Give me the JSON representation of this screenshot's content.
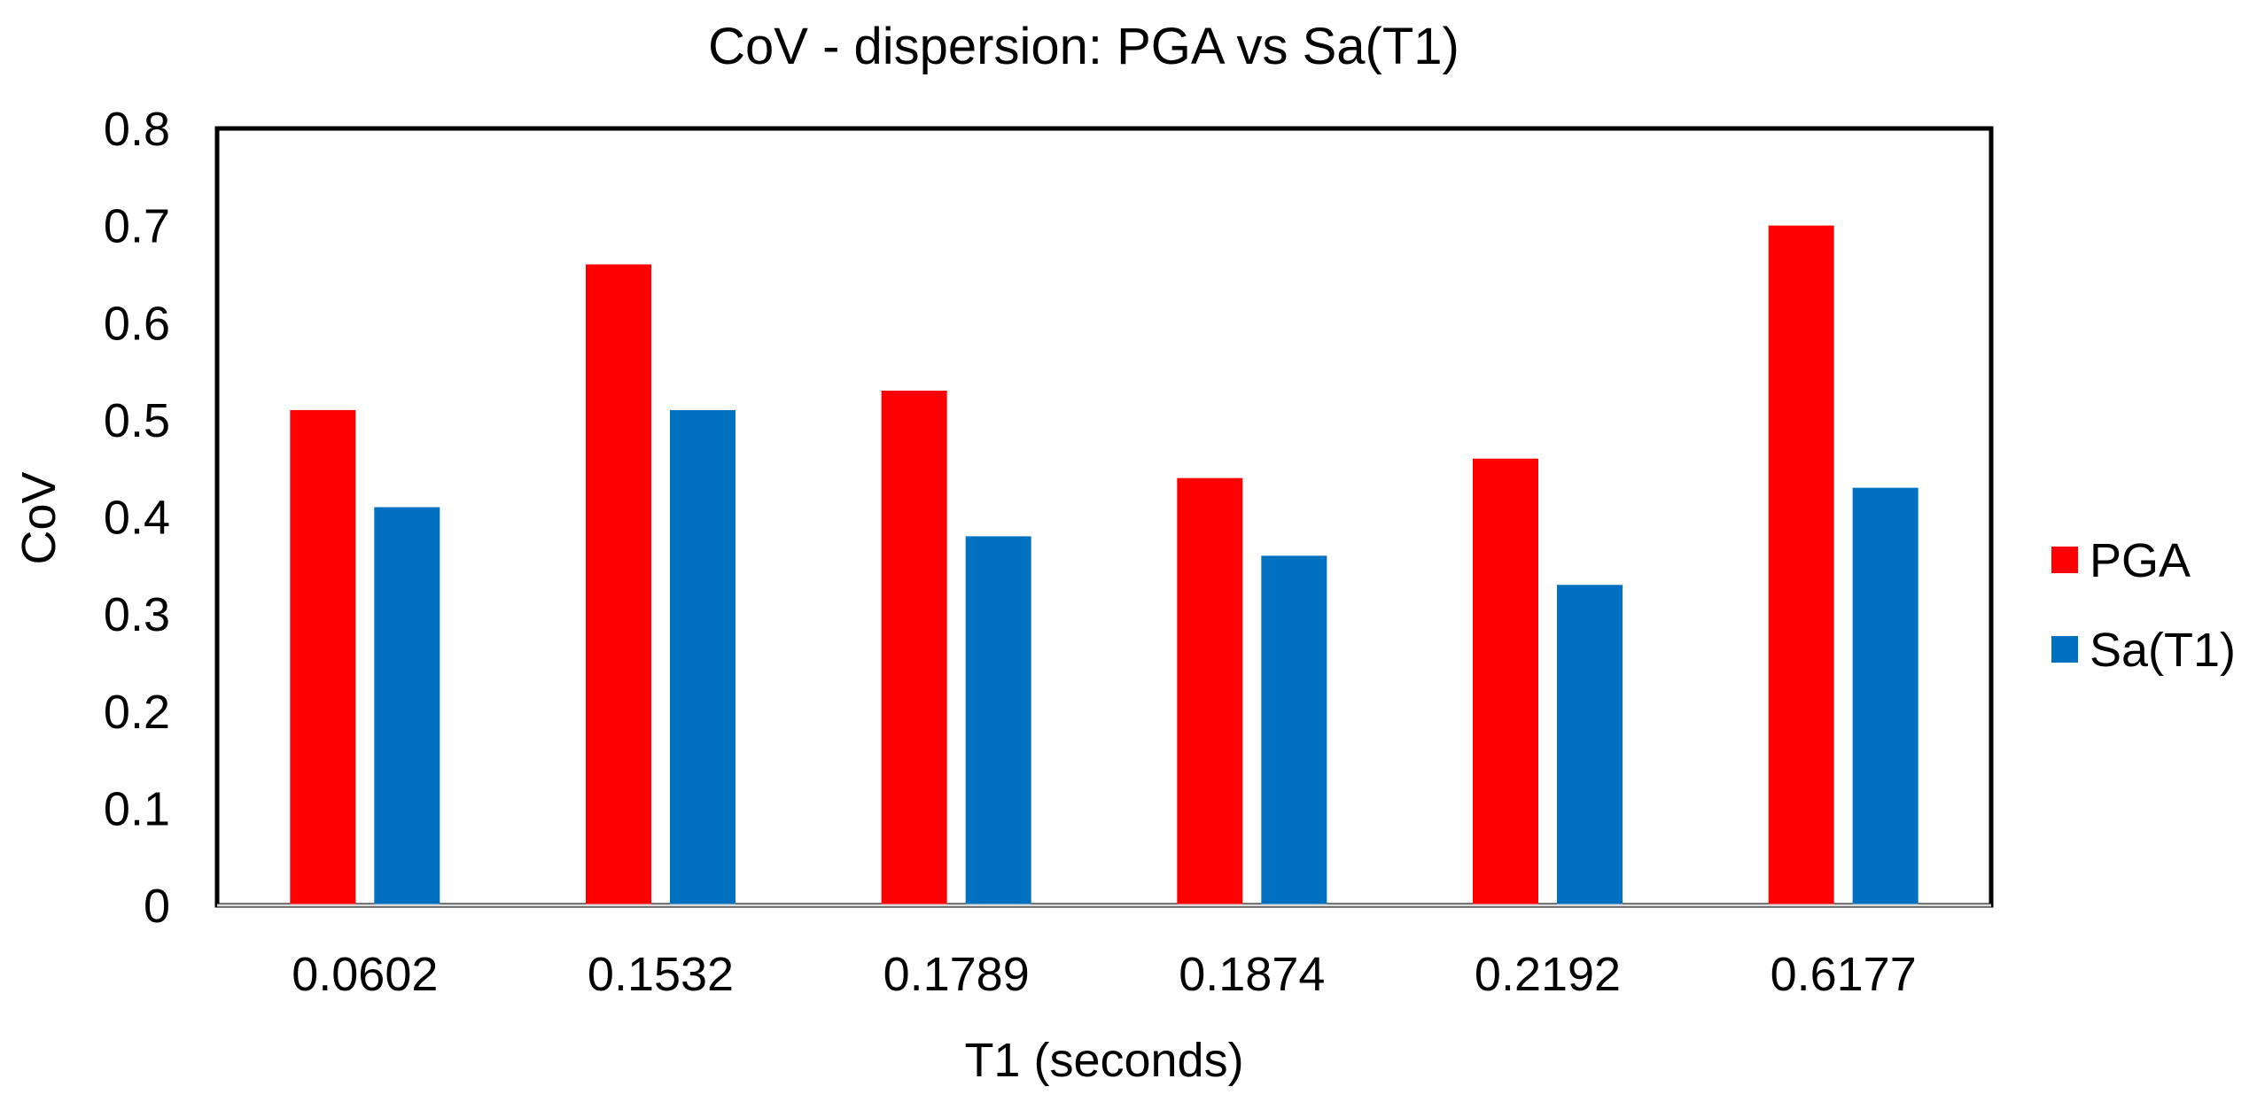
{
  "chart_data": {
    "type": "bar",
    "title": "CoV - dispersion: PGA vs Sa(T1)",
    "xlabel": "T1 (seconds)",
    "ylabel": "CoV",
    "categories": [
      "0.0602",
      "0.1532",
      "0.1789",
      "0.1874",
      "0.2192",
      "0.6177"
    ],
    "series": [
      {
        "name": "PGA",
        "color": "#ff0000",
        "values": [
          0.51,
          0.66,
          0.53,
          0.44,
          0.46,
          0.7
        ]
      },
      {
        "name": "Sa(T1)",
        "color": "#0070c0",
        "values": [
          0.41,
          0.51,
          0.38,
          0.36,
          0.33,
          0.43
        ]
      }
    ],
    "ylim": [
      0,
      0.8
    ],
    "yticks": [
      0,
      0.1,
      0.2,
      0.3,
      0.4,
      0.5,
      0.6,
      0.7,
      0.8
    ],
    "ytick_labels": [
      "0",
      "0.1",
      "0.2",
      "0.3",
      "0.4",
      "0.5",
      "0.6",
      "0.7",
      "0.8"
    ],
    "grid": false,
    "legend_position": "right"
  }
}
